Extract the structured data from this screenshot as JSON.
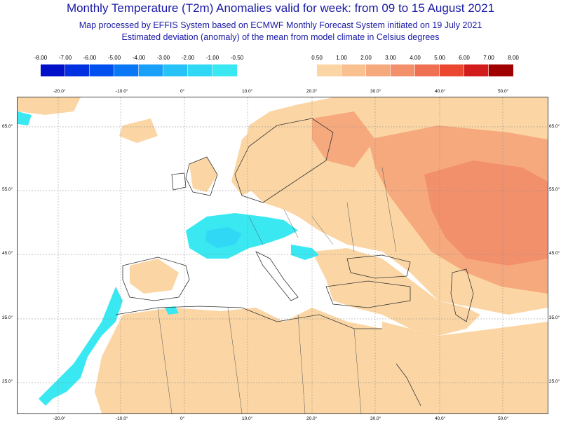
{
  "header": {
    "title": "Monthly Temperature (T2m) Anomalies valid for week: from 09 to 15 August 2021",
    "subtitle1": "Map processed by EFFIS System based on ECMWF Monthly Forecast System initiated on 19 July 2021",
    "subtitle2": "Estimated deviation (anomaly) of the mean from model climate in Celsius degrees"
  },
  "legend_cold": {
    "ticks": [
      "-8.00",
      "-7.00",
      "-6.00",
      "-5.00",
      "-4.00",
      "-3.00",
      "-2.00",
      "-1.00",
      "-0.50"
    ],
    "colors": [
      "#0010c8",
      "#0030e0",
      "#0050f0",
      "#0a78f5",
      "#1aa0f8",
      "#26c2f8",
      "#30d8f5",
      "#3ae8f2"
    ]
  },
  "legend_warm": {
    "ticks": [
      "0.50",
      "1.00",
      "2.00",
      "3.00",
      "4.00",
      "5.00",
      "6.00",
      "7.00",
      "8.00"
    ],
    "colors": [
      "#fbd6a4",
      "#f9c190",
      "#f7a97e",
      "#f3906c",
      "#ef6f52",
      "#ea4630",
      "#d21c1c",
      "#a00000"
    ]
  },
  "map": {
    "lon_labels": [
      "-20.0°",
      "-10.0°",
      "0°",
      "10.0°",
      "20.0°",
      "30.0°",
      "40.0°",
      "50.0°"
    ],
    "lat_labels": [
      "65.0°",
      "55.0°",
      "45.0°",
      "35.0°",
      "25.0°"
    ],
    "colors": {
      "land_warm_1": "#fbd6a4",
      "land_warm_2": "#f7a97e",
      "land_warm_3": "#f3906c",
      "cold_1": "#3ae8f2",
      "cold_2": "#30d8f5"
    }
  }
}
